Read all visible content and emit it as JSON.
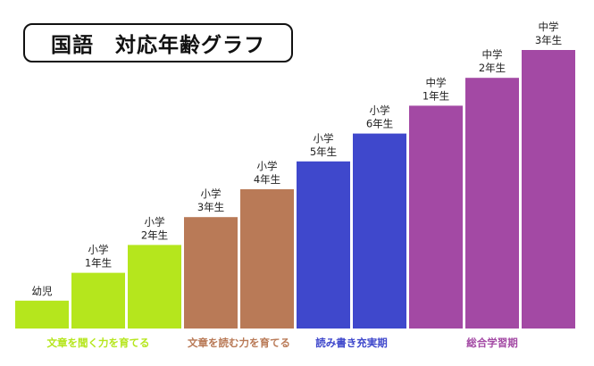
{
  "chart_data": {
    "type": "bar",
    "title": "国語　対応年齢グラフ",
    "xlabel": "",
    "ylabel": "",
    "grid": false,
    "legend": "none",
    "categories": [
      [
        "幼児"
      ],
      [
        "小学",
        "1年生"
      ],
      [
        "小学",
        "2年生"
      ],
      [
        "小学",
        "3年生"
      ],
      [
        "小学",
        "4年生"
      ],
      [
        "小学",
        "5年生"
      ],
      [
        "小学",
        "6年生"
      ],
      [
        "中学",
        "1年生"
      ],
      [
        "中学",
        "2年生"
      ],
      [
        "中学",
        "3年生"
      ]
    ],
    "values": [
      1,
      2,
      3,
      4,
      5,
      6,
      7,
      8,
      9,
      10
    ],
    "ylim": [
      0,
      10
    ],
    "groups": [
      {
        "label": "文章を聞く力を育てる",
        "start": 0,
        "end": 2,
        "color": "#b5e61d"
      },
      {
        "label": "文章を読む力を育てる",
        "start": 3,
        "end": 4,
        "color": "#b97a57"
      },
      {
        "label": "読み書き充実期",
        "start": 5,
        "end": 6,
        "color": "#3f48cc"
      },
      {
        "label": "総合学習期",
        "start": 7,
        "end": 9,
        "color": "#a349a4"
      }
    ]
  }
}
